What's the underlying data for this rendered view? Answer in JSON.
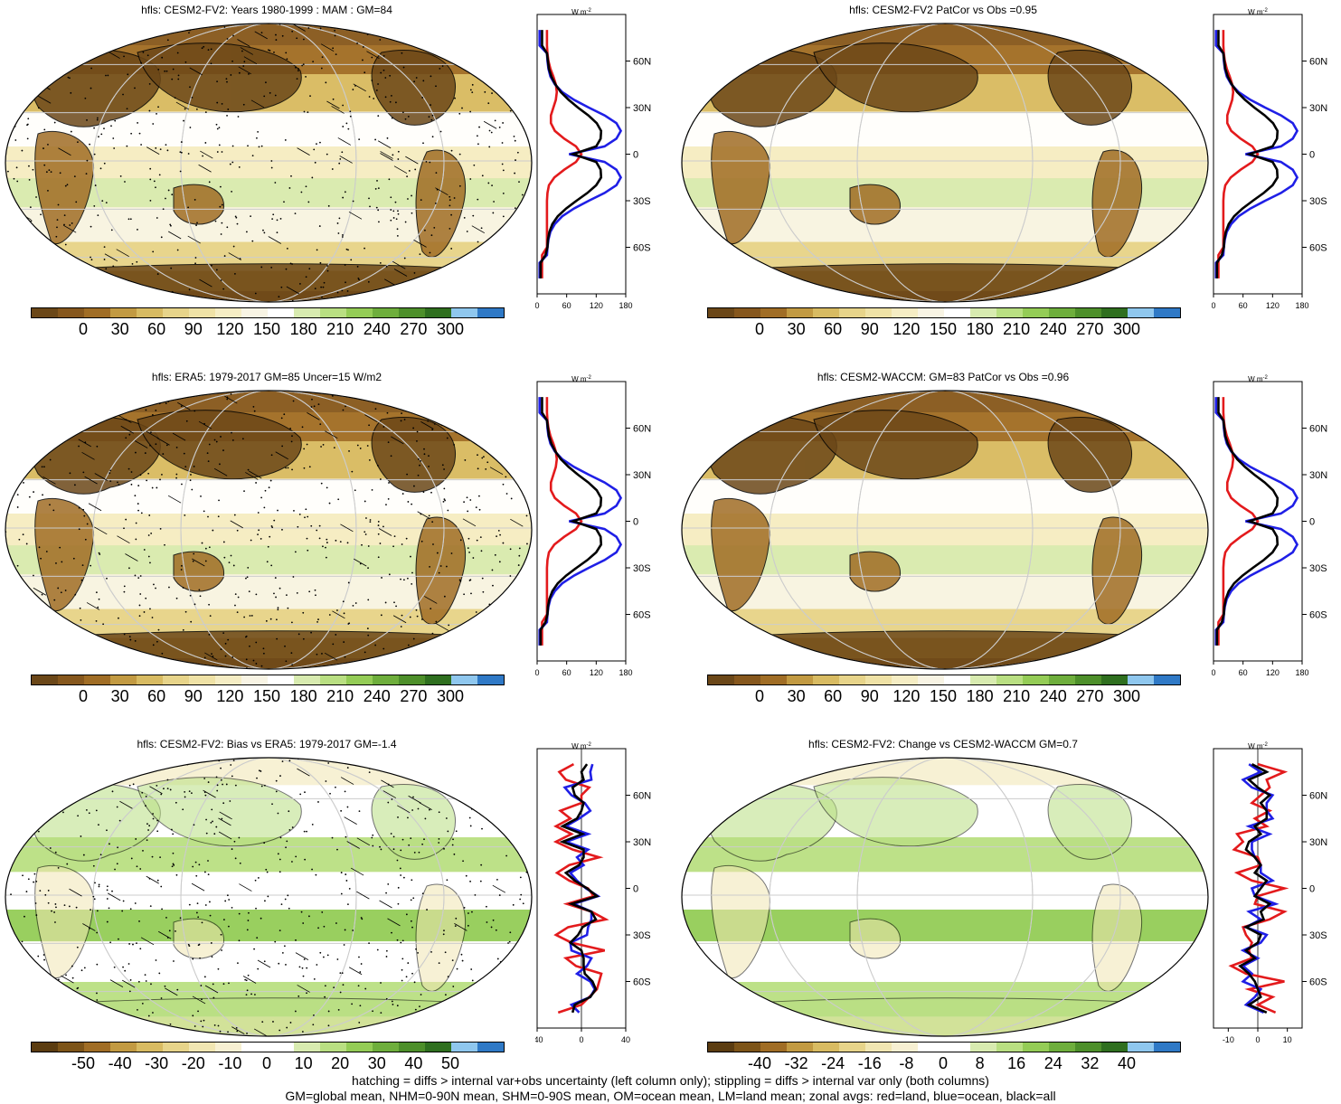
{
  "panels": [
    {
      "id": "p1",
      "title": "hfls: CESM2-FV2: Years 1980-1999 : MAM : GM=84",
      "colorbar_labels": [
        "0",
        "30",
        "60",
        "90",
        "120",
        "150",
        "180",
        "210",
        "240",
        "270",
        "300"
      ],
      "stipple": true,
      "hatch": true,
      "zonal": {
        "x_ticks": [
          "0",
          "60",
          "120",
          "180"
        ],
        "xlim": [
          0,
          180
        ]
      }
    },
    {
      "id": "p2",
      "title": "hfls: CESM2-FV2 PatCor vs Obs =0.95",
      "colorbar_labels": [
        "0",
        "30",
        "60",
        "90",
        "120",
        "150",
        "180",
        "210",
        "240",
        "270",
        "300"
      ],
      "stipple": false,
      "hatch": false,
      "zonal": {
        "x_ticks": [
          "0",
          "60",
          "120",
          "180"
        ],
        "xlim": [
          0,
          180
        ]
      }
    },
    {
      "id": "p3",
      "title": "hfls: ERA5: 1979-2017 GM=85 Uncer=15 W/m2",
      "colorbar_labels": [
        "0",
        "30",
        "60",
        "90",
        "120",
        "150",
        "180",
        "210",
        "240",
        "270",
        "300"
      ],
      "stipple": true,
      "hatch": true,
      "zonal": {
        "x_ticks": [
          "0",
          "60",
          "120",
          "180"
        ],
        "xlim": [
          0,
          180
        ]
      }
    },
    {
      "id": "p4",
      "title": "hfls: CESM2-WACCM: GM=83 PatCor vs Obs =0.96",
      "colorbar_labels": [
        "0",
        "30",
        "60",
        "90",
        "120",
        "150",
        "180",
        "210",
        "240",
        "270",
        "300"
      ],
      "stipple": false,
      "hatch": false,
      "zonal": {
        "x_ticks": [
          "0",
          "60",
          "120",
          "180"
        ],
        "xlim": [
          0,
          180
        ]
      }
    },
    {
      "id": "p5",
      "title": "hfls: CESM2-FV2: Bias vs ERA5: 1979-2017 GM=-1.4",
      "colorbar_labels": [
        "-50",
        "-40",
        "-30",
        "-20",
        "-10",
        "0",
        "10",
        "20",
        "30",
        "40",
        "50"
      ],
      "stipple": true,
      "hatch": true,
      "zonal": {
        "x_ticks": [
          "-40",
          "0",
          "40"
        ],
        "xlim": [
          -40,
          40
        ]
      }
    },
    {
      "id": "p6",
      "title": "hfls: CESM2-FV2: Change vs CESM2-WACCM GM=0.7",
      "colorbar_labels": [
        "-40",
        "-32",
        "-24",
        "-16",
        "-8",
        "0",
        "8",
        "16",
        "24",
        "32",
        "40"
      ],
      "stipple": false,
      "hatch": false,
      "zonal": {
        "x_ticks": [
          "-10",
          "0",
          "10"
        ],
        "xlim": [
          -15,
          15
        ]
      }
    }
  ],
  "zonal_units": "W m",
  "zonal_units_sup": "-2",
  "lat_labels": [
    "60N",
    "30N",
    "0",
    "30S",
    "60S"
  ],
  "colors": {
    "absolute": [
      "#6b4718",
      "#86571d",
      "#a06d25",
      "#c29a42",
      "#d8bb62",
      "#e7d48a",
      "#efe2a6",
      "#f5edc4",
      "#f8f4e4",
      "#ffffff",
      "#d8ebb0",
      "#b9df82",
      "#94cc56",
      "#6eae3c",
      "#4d8f2a",
      "#2f6f1f",
      "#8fc7ee",
      "#2f79c6"
    ],
    "diff": [
      "#5b3c10",
      "#7d5418",
      "#a06d25",
      "#c29a42",
      "#d8bb62",
      "#e7d48a",
      "#f1e6b2",
      "#f7f0d2",
      "#ffffff",
      "#ffffff",
      "#d8ebb0",
      "#b9df82",
      "#94cc56",
      "#6eae3c",
      "#4d8f2a",
      "#2f6f1f",
      "#8fc7ee",
      "#2f79c6"
    ],
    "land": "#e31a1c",
    "ocean": "#1f1fe6",
    "all": "#000000"
  },
  "footer": {
    "line1": "hatching = diffs > internal var+obs uncertainty (left column only); stippling = diffs > internal var only (both columns)",
    "line2": "GM=global mean, NHM=0-90N mean, SHM=0-90S mean, OM=ocean mean, LM=land mean; zonal avgs: red=land, blue=ocean, black=all"
  }
}
